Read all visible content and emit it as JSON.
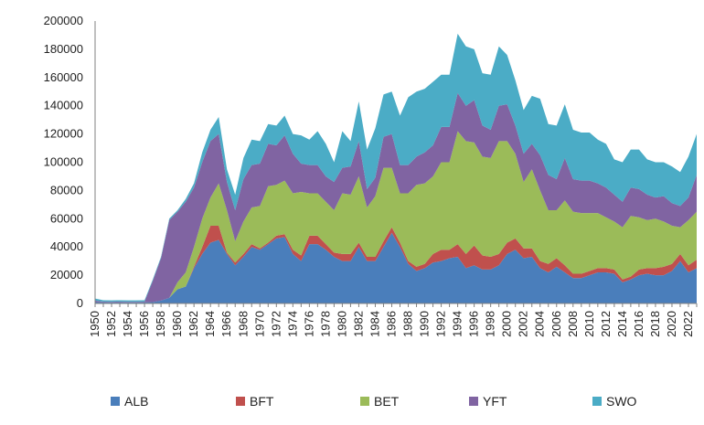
{
  "chart_data": {
    "type": "area",
    "stacked": true,
    "title": "",
    "xlabel": "",
    "ylabel": "",
    "ylim": [
      0,
      200000
    ],
    "yticks": [
      0,
      20000,
      40000,
      60000,
      80000,
      100000,
      120000,
      140000,
      160000,
      180000,
      200000
    ],
    "xtick_labels": [
      "1950",
      "1952",
      "1954",
      "1956",
      "1958",
      "1960",
      "1962",
      "1964",
      "1966",
      "1968",
      "1970",
      "1972",
      "1974",
      "1976",
      "1978",
      "1980",
      "1982",
      "1984",
      "1986",
      "1988",
      "1990",
      "1992",
      "1994",
      "1996",
      "1998",
      "2000",
      "2002",
      "2004",
      "2006",
      "2008",
      "2010",
      "2012",
      "2014",
      "2016",
      "2018",
      "2020",
      "2022"
    ],
    "legend_position": "bottom",
    "x": [
      1950,
      1951,
      1952,
      1953,
      1954,
      1955,
      1956,
      1957,
      1958,
      1959,
      1960,
      1961,
      1962,
      1963,
      1964,
      1965,
      1966,
      1967,
      1968,
      1969,
      1970,
      1971,
      1972,
      1973,
      1974,
      1975,
      1976,
      1977,
      1978,
      1979,
      1980,
      1981,
      1982,
      1983,
      1984,
      1985,
      1986,
      1987,
      1988,
      1989,
      1990,
      1991,
      1992,
      1993,
      1994,
      1995,
      1996,
      1997,
      1998,
      1999,
      2000,
      2001,
      2002,
      2003,
      2004,
      2005,
      2006,
      2007,
      2008,
      2009,
      2010,
      2011,
      2012,
      2013,
      2014,
      2015,
      2016,
      2017,
      2018,
      2019,
      2020,
      2021,
      2022,
      2023
    ],
    "series": [
      {
        "name": "ALB",
        "color": "#4a7ebb",
        "values": [
          1000,
          800,
          700,
          800,
          700,
          700,
          800,
          1000,
          2000,
          4000,
          10000,
          12000,
          25000,
          35000,
          43000,
          45000,
          35000,
          27000,
          33000,
          40000,
          38000,
          42000,
          46000,
          47000,
          35000,
          30000,
          42000,
          42000,
          38000,
          33000,
          30000,
          30000,
          40000,
          30000,
          30000,
          40000,
          50000,
          40000,
          28000,
          23000,
          25000,
          29000,
          30000,
          32000,
          33000,
          25000,
          27000,
          24000,
          24000,
          27000,
          35000,
          38000,
          32000,
          33000,
          25000,
          22000,
          26000,
          22000,
          18000,
          18000,
          20000,
          22000,
          22000,
          21000,
          15000,
          17000,
          20000,
          21000,
          20000,
          20000,
          23000,
          30000,
          22000,
          25000
        ]
      },
      {
        "name": "BFT",
        "color": "#c0504d",
        "values": [
          0,
          0,
          0,
          0,
          0,
          0,
          0,
          0,
          0,
          0,
          0,
          0,
          1000,
          5000,
          12000,
          10000,
          1000,
          2000,
          2000,
          2000,
          1000,
          1000,
          2000,
          2000,
          3000,
          4000,
          6000,
          6000,
          4000,
          3000,
          5000,
          5000,
          3000,
          3000,
          3000,
          4000,
          4000,
          3000,
          2000,
          3000,
          3000,
          6000,
          8000,
          6000,
          9000,
          10000,
          14000,
          10000,
          9000,
          8000,
          8000,
          8000,
          7000,
          6000,
          5000,
          6000,
          6000,
          5000,
          3000,
          3000,
          3000,
          3000,
          3000,
          3000,
          2000,
          2000,
          4000,
          4000,
          5000,
          6000,
          5000,
          5000,
          5000,
          6000
        ]
      },
      {
        "name": "BET",
        "color": "#9bbb59",
        "values": [
          0,
          0,
          0,
          0,
          0,
          0,
          0,
          0,
          0,
          0,
          5000,
          10000,
          14000,
          20000,
          20000,
          30000,
          30000,
          15000,
          23000,
          26000,
          30000,
          40000,
          36000,
          38000,
          40000,
          45000,
          30000,
          30000,
          30000,
          30000,
          43000,
          42000,
          47000,
          35000,
          43000,
          52000,
          42000,
          35000,
          48000,
          58000,
          57000,
          55000,
          62000,
          62000,
          80000,
          80000,
          73000,
          70000,
          70000,
          80000,
          72000,
          60000,
          47000,
          56000,
          50000,
          38000,
          34000,
          46000,
          44000,
          43000,
          41000,
          39000,
          36000,
          34000,
          37000,
          43000,
          37000,
          34000,
          35000,
          32000,
          27000,
          19000,
          32000,
          34000
        ]
      },
      {
        "name": "YFT",
        "color": "#8064a2",
        "values": [
          1000,
          500,
          500,
          500,
          500,
          500,
          500,
          15000,
          30000,
          55000,
          50000,
          50000,
          42000,
          40000,
          40000,
          35000,
          20000,
          22000,
          30000,
          30000,
          30000,
          30000,
          28000,
          32000,
          28000,
          20000,
          20000,
          20000,
          18000,
          20000,
          18000,
          20000,
          25000,
          13000,
          13000,
          22000,
          24000,
          20000,
          20000,
          20000,
          22000,
          22000,
          25000,
          25000,
          27000,
          25000,
          30000,
          22000,
          20000,
          25000,
          26000,
          20000,
          20000,
          18000,
          25000,
          25000,
          22000,
          30000,
          23000,
          23000,
          23000,
          21000,
          21000,
          19000,
          18000,
          20000,
          20000,
          18000,
          15000,
          18000,
          16000,
          15000,
          16000,
          26000
        ]
      },
      {
        "name": "SWO",
        "color": "#4bacc6",
        "values": [
          1500,
          1000,
          1000,
          1000,
          1000,
          1000,
          1000,
          1000,
          1000,
          1000,
          1000,
          2000,
          3000,
          7000,
          8000,
          12000,
          9000,
          11000,
          15000,
          18000,
          16000,
          14000,
          14000,
          14000,
          14000,
          20000,
          18000,
          24000,
          23000,
          14000,
          26000,
          18000,
          28000,
          28000,
          35000,
          30000,
          30000,
          35000,
          48000,
          46000,
          45000,
          45000,
          37000,
          37000,
          42000,
          42000,
          36000,
          37000,
          39000,
          42000,
          35000,
          32000,
          31000,
          34000,
          40000,
          36000,
          38000,
          38000,
          35000,
          34000,
          34000,
          31000,
          31000,
          25000,
          28000,
          27000,
          28000,
          25000,
          25000,
          24000,
          26000,
          24000,
          29000,
          29000
        ]
      }
    ]
  }
}
